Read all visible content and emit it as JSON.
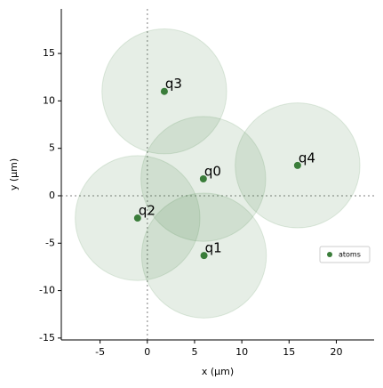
{
  "chart_data": {
    "type": "scatter",
    "xlabel": "x (µm)",
    "ylabel": "y (µm)",
    "series": [
      {
        "name": "atoms",
        "color": "#3a7d3a",
        "x": [
          5.93,
          6.0,
          -1.03,
          1.8,
          15.9
        ],
        "values": [
          1.78,
          -6.3,
          -2.35,
          11.0,
          3.2
        ],
        "point_labels": [
          "q0",
          "q1",
          "q2",
          "q3",
          "q4"
        ]
      }
    ],
    "radius": 6.6,
    "xlim": [
      -9.1,
      24.0
    ],
    "ylim": [
      -15.2,
      19.7
    ],
    "xticks": [
      -5,
      0,
      5,
      10,
      15,
      20
    ],
    "yticks": [
      -15,
      -10,
      -5,
      0,
      5,
      10,
      15
    ],
    "legend": "lower right"
  }
}
